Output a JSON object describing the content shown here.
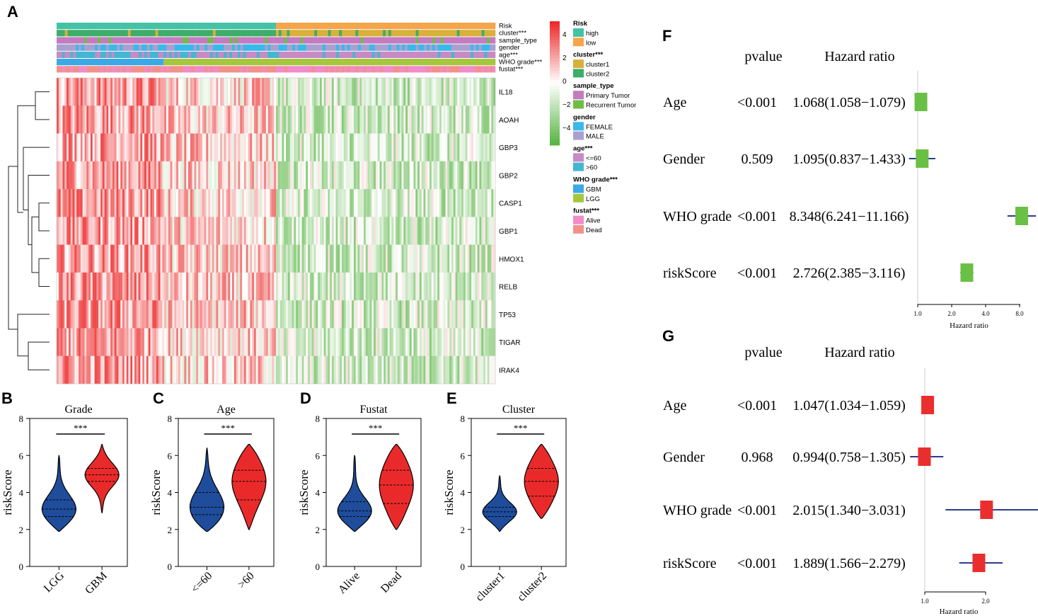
{
  "panel_labels": {
    "A": "A",
    "B": "B",
    "C": "C",
    "D": "D",
    "E": "E",
    "F": "F",
    "G": "G"
  },
  "colors": {
    "risk_high": "#44c2a6",
    "risk_low": "#f5a54a",
    "cluster1": "#d8b03a",
    "cluster2": "#3dae6a",
    "primary": "#c47bc0",
    "recurrent": "#6fbd45",
    "female": "#39b8ea",
    "male": "#a9a0d0",
    "age_le60": "#c78ac4",
    "age_gt60": "#43b7d1",
    "gbm": "#3aa9e6",
    "lgg": "#a5c73e",
    "alive": "#f08cc7",
    "dead": "#f2908a",
    "heat_high": "#ed2b2b",
    "heat_low": "#59b544",
    "violin_blue": "#1f4d9c",
    "violin_red": "#ea2a2a",
    "forest_green": "#6abf45",
    "forest_red": "#ea2e2e",
    "forest_line": "#2b3d8f"
  },
  "heatmap": {
    "annotation_labels": [
      "Risk",
      "cluster***",
      "sample_type",
      "gender",
      "age***",
      "WHO grade***",
      "fustat***"
    ],
    "genes": [
      "IL18",
      "AOAH",
      "GBP3",
      "GBP2",
      "CASP1",
      "GBP1",
      "HMOX1",
      "RELB",
      "TP53",
      "TIGAR",
      "IRAK4"
    ],
    "colorbar_ticks": [
      "4",
      "2",
      "0",
      "−2",
      "−4"
    ],
    "legend": [
      {
        "title": "Risk",
        "items": [
          {
            "label": "high",
            "color": "#44c2a6"
          },
          {
            "label": "low",
            "color": "#f5a54a"
          }
        ]
      },
      {
        "title": "cluster***",
        "items": [
          {
            "label": "cluster1",
            "color": "#d8b03a"
          },
          {
            "label": "cluster2",
            "color": "#3dae6a"
          }
        ]
      },
      {
        "title": "sample_type",
        "items": [
          {
            "label": "Primary Tumor",
            "color": "#c47bc0"
          },
          {
            "label": "Recurrent Tumor",
            "color": "#6fbd45"
          }
        ]
      },
      {
        "title": "gender",
        "items": [
          {
            "label": "FEMALE",
            "color": "#39b8ea"
          },
          {
            "label": "MALE",
            "color": "#a9a0d0"
          }
        ]
      },
      {
        "title": "age***",
        "items": [
          {
            "label": "<=60",
            "color": "#c78ac4"
          },
          {
            "label": ">60",
            "color": "#43b7d1"
          }
        ]
      },
      {
        "title": "WHO grade***",
        "items": [
          {
            "label": "GBM",
            "color": "#3aa9e6"
          },
          {
            "label": "LGG",
            "color": "#a5c73e"
          }
        ]
      },
      {
        "title": "fustat***",
        "items": [
          {
            "label": "Alive",
            "color": "#f08cc7"
          },
          {
            "label": "Dead",
            "color": "#f2908a"
          }
        ]
      }
    ]
  },
  "chart_data": [
    {
      "panel": "A",
      "type": "heatmap",
      "rows": [
        "IL18",
        "AOAH",
        "GBP3",
        "GBP2",
        "CASP1",
        "GBP1",
        "HMOX1",
        "RELB",
        "TP53",
        "TIGAR",
        "IRAK4"
      ],
      "color_range": [
        -4,
        4
      ],
      "high_risk_fraction": 0.5
    },
    {
      "panel": "B",
      "type": "violin",
      "title": "Grade",
      "ylabel": "riskScore",
      "ylim": [
        0,
        8
      ],
      "yticks": [
        "0",
        "2",
        "4",
        "6",
        "8"
      ],
      "categories": [
        "LGG",
        "GBM"
      ],
      "significance": "***",
      "series": [
        {
          "name": "LGG",
          "color": "#1f4d9c",
          "min": 1.9,
          "max": 6.0,
          "q1": 2.7,
          "median": 3.1,
          "q3": 3.6
        },
        {
          "name": "GBM",
          "color": "#ea2a2a",
          "min": 2.9,
          "max": 6.6,
          "q1": 4.6,
          "median": 4.95,
          "q3": 5.3
        }
      ]
    },
    {
      "panel": "C",
      "type": "violin",
      "title": "Age",
      "ylabel": "riskScore",
      "ylim": [
        0,
        8
      ],
      "yticks": [
        "0",
        "2",
        "4",
        "6",
        "8"
      ],
      "categories": [
        "<=60",
        ">60"
      ],
      "significance": "***",
      "series": [
        {
          "name": "<=60",
          "color": "#1f4d9c",
          "min": 1.9,
          "max": 6.4,
          "q1": 2.8,
          "median": 3.2,
          "q3": 4.0
        },
        {
          "name": ">60",
          "color": "#ea2a2a",
          "min": 2.0,
          "max": 6.6,
          "q1": 3.6,
          "median": 4.6,
          "q3": 5.2
        }
      ]
    },
    {
      "panel": "D",
      "type": "violin",
      "title": "Fustat",
      "ylabel": "riskScore",
      "ylim": [
        0,
        8
      ],
      "yticks": [
        "0",
        "2",
        "4",
        "6",
        "8"
      ],
      "categories": [
        "Alive",
        "Dead"
      ],
      "significance": "***",
      "series": [
        {
          "name": "Alive",
          "color": "#1f4d9c",
          "min": 1.9,
          "max": 6.0,
          "q1": 2.7,
          "median": 3.0,
          "q3": 3.5
        },
        {
          "name": "Dead",
          "color": "#ea2a2a",
          "min": 2.0,
          "max": 6.6,
          "q1": 3.4,
          "median": 4.4,
          "q3": 5.2
        }
      ]
    },
    {
      "panel": "E",
      "type": "violin",
      "title": "Cluster",
      "ylabel": "riskScore",
      "ylim": [
        0,
        8
      ],
      "yticks": [
        "0",
        "2",
        "4",
        "6",
        "8"
      ],
      "categories": [
        "cluster1",
        "cluster2"
      ],
      "significance": "***",
      "series": [
        {
          "name": "cluster1",
          "color": "#1f4d9c",
          "min": 1.9,
          "max": 4.9,
          "q1": 2.7,
          "median": 2.95,
          "q3": 3.2
        },
        {
          "name": "cluster2",
          "color": "#ea2a2a",
          "min": 2.6,
          "max": 6.6,
          "q1": 3.8,
          "median": 4.6,
          "q3": 5.3
        }
      ]
    },
    {
      "panel": "F",
      "type": "forest",
      "col_pvalue": "pvalue",
      "col_hr": "Hazard ratio",
      "xlabel": "Hazard ratio",
      "xticks": [
        "1.0",
        "2.0",
        "4.0",
        "8.0"
      ],
      "xscale": "log",
      "color": "#6abf45",
      "rows": [
        {
          "name": "Age",
          "pvalue": "<0.001",
          "hr_text": "1.068(1.058−1.079)",
          "hr": 1.068,
          "lo": 1.058,
          "hi": 1.079
        },
        {
          "name": "Gender",
          "pvalue": "0.509",
          "hr_text": "1.095(0.837−1.433)",
          "hr": 1.095,
          "lo": 0.837,
          "hi": 1.433
        },
        {
          "name": "WHO grade",
          "pvalue": "<0.001",
          "hr_text": "8.348(6.241−11.166)",
          "hr": 8.348,
          "lo": 6.241,
          "hi": 11.166
        },
        {
          "name": "riskScore",
          "pvalue": "<0.001",
          "hr_text": "2.726(2.385−3.116)",
          "hr": 2.726,
          "lo": 2.385,
          "hi": 3.116
        }
      ]
    },
    {
      "panel": "G",
      "type": "forest",
      "col_pvalue": "pvalue",
      "col_hr": "Hazard ratio",
      "xlabel": "Hazard ratio",
      "xticks": [
        "1.0",
        "2.0"
      ],
      "xscale": "linear",
      "color": "#ea2e2e",
      "rows": [
        {
          "name": "Age",
          "pvalue": "<0.001",
          "hr_text": "1.047(1.034−1.059)",
          "hr": 1.047,
          "lo": 1.034,
          "hi": 1.059
        },
        {
          "name": "Gender",
          "pvalue": "0.968",
          "hr_text": "0.994(0.758−1.305)",
          "hr": 0.994,
          "lo": 0.758,
          "hi": 1.305
        },
        {
          "name": "WHO grade",
          "pvalue": "<0.001",
          "hr_text": "2.015(1.340−3.031)",
          "hr": 2.015,
          "lo": 1.34,
          "hi": 3.031
        },
        {
          "name": "riskScore",
          "pvalue": "<0.001",
          "hr_text": "1.889(1.566−2.279)",
          "hr": 1.889,
          "lo": 1.566,
          "hi": 2.279
        }
      ]
    }
  ]
}
